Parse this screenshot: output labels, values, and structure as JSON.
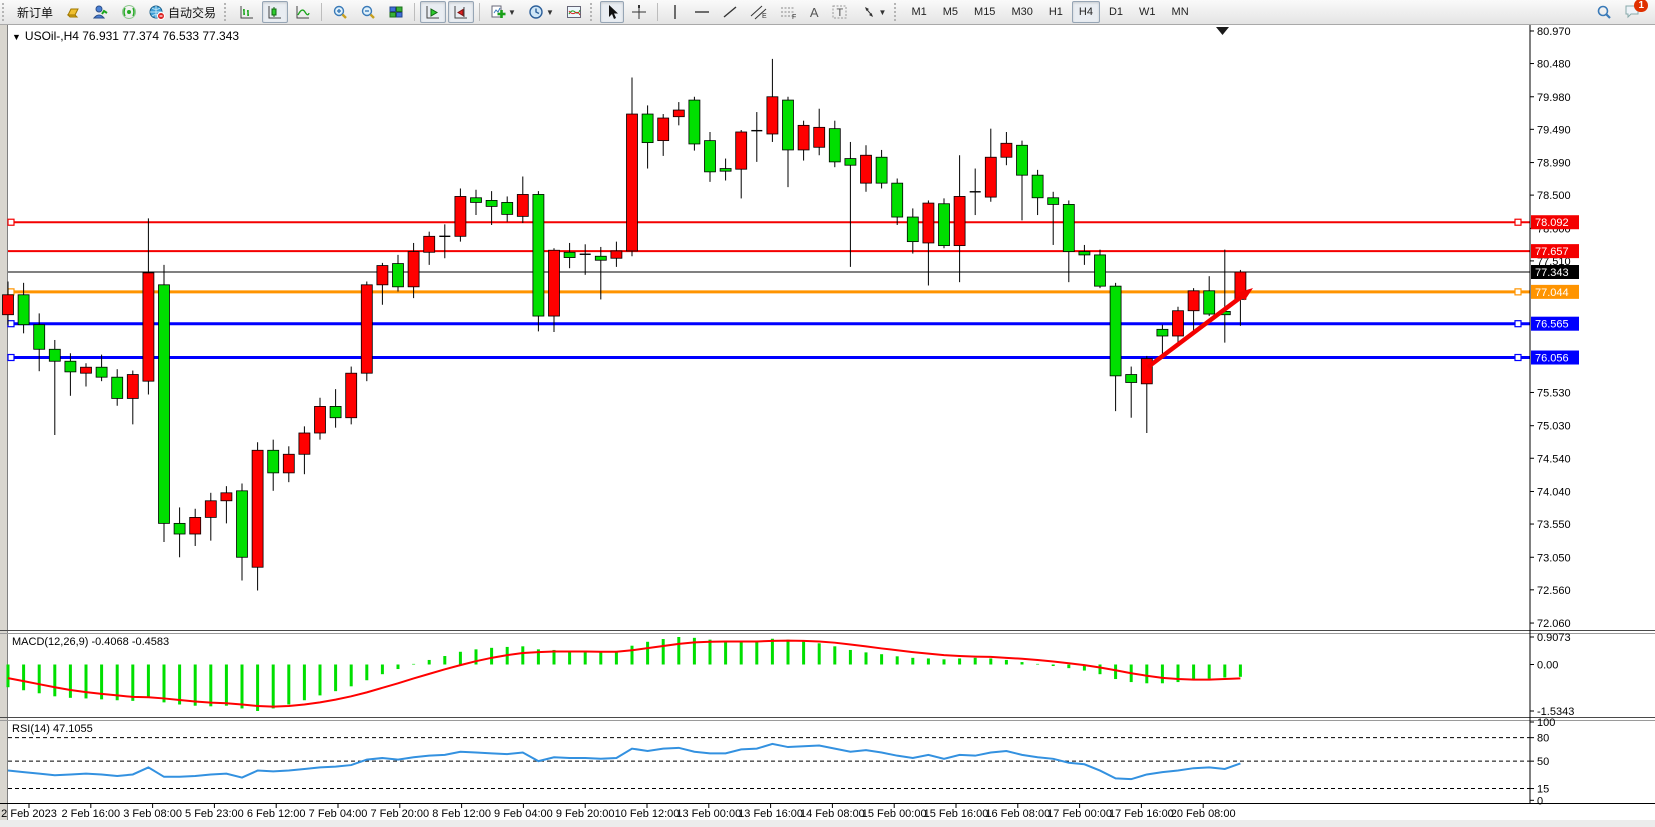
{
  "toolbar": {
    "new_order_label": "新订单",
    "auto_trading_label": "自动交易",
    "timeframes": [
      "M1",
      "M5",
      "M15",
      "M30",
      "H1",
      "H4",
      "D1",
      "W1",
      "MN"
    ],
    "active_timeframe": "H4",
    "notification_count": "1"
  },
  "chart": {
    "title": "USOil-,H4 76.931 77.374 76.533 77.343",
    "symbol": "USOil-",
    "period": "H4",
    "ohlc": {
      "open": "76.931",
      "high": "77.374",
      "low": "76.533",
      "close": "77.343"
    },
    "colors": {
      "up": "#ff0000",
      "down": "#00df00",
      "wick": "#000000",
      "level_red": "#f40000",
      "level_orange": "#ff9400",
      "level_blue": "#0000ff",
      "bid": "#000000",
      "macd_hist": "#00df00",
      "macd_signal": "#ff0000",
      "rsi": "#3391e0",
      "arrow": "#f40000"
    },
    "price_ticks": [
      "80.970",
      "80.480",
      "79.980",
      "79.490",
      "78.990",
      "78.500",
      "78.000",
      "77.510",
      "75.530",
      "75.030",
      "74.540",
      "74.040",
      "73.550",
      "73.050",
      "72.560",
      "72.060"
    ],
    "levels": [
      {
        "label": "78.092",
        "price": 78.092,
        "color": "#f40000",
        "width": 2,
        "handles": true
      },
      {
        "label": "77.657",
        "price": 77.657,
        "color": "#f40000",
        "width": 2,
        "handles": false
      },
      {
        "label": "77.343",
        "price": 77.343,
        "color": "#000000",
        "width": 1,
        "handles": false,
        "type": "bid"
      },
      {
        "label": "77.044",
        "price": 77.044,
        "color": "#ff9400",
        "width": 3,
        "handles": true
      },
      {
        "label": "76.565",
        "price": 76.565,
        "color": "#0000ff",
        "width": 3,
        "handles": true
      },
      {
        "label": "76.056",
        "price": 76.056,
        "color": "#0000ff",
        "width": 3,
        "handles": true
      }
    ],
    "time_labels": [
      "2 Feb 2023",
      "2 Feb 16:00",
      "3 Feb 08:00",
      "5 Feb 23:00",
      "6 Feb 12:00",
      "7 Feb 04:00",
      "7 Feb 20:00",
      "8 Feb 12:00",
      "9 Feb 04:00",
      "9 Feb 20:00",
      "10 Feb 12:00",
      "13 Feb 00:00",
      "13 Feb 16:00",
      "14 Feb 08:00",
      "15 Feb 00:00",
      "15 Feb 16:00",
      "16 Feb 08:00",
      "17 Feb 00:00",
      "17 Feb 16:00",
      "20 Feb 08:00"
    ],
    "candles": [
      [
        76.7,
        77.2,
        76.55,
        77.0
      ],
      [
        77.0,
        77.18,
        76.42,
        76.55
      ],
      [
        76.55,
        76.72,
        75.85,
        76.18
      ],
      [
        76.18,
        76.32,
        74.89,
        76.0
      ],
      [
        76.0,
        76.12,
        75.48,
        75.84
      ],
      [
        75.82,
        75.97,
        75.62,
        75.91
      ],
      [
        75.91,
        76.1,
        75.7,
        75.76
      ],
      [
        75.76,
        75.88,
        75.33,
        75.44
      ],
      [
        75.44,
        75.86,
        75.05,
        75.8
      ],
      [
        75.7,
        78.15,
        75.5,
        77.33
      ],
      [
        77.15,
        77.45,
        73.28,
        73.56
      ],
      [
        73.56,
        73.8,
        73.05,
        73.4
      ],
      [
        73.4,
        73.78,
        73.22,
        73.65
      ],
      [
        73.65,
        74.02,
        73.3,
        73.9
      ],
      [
        73.9,
        74.12,
        73.56,
        74.02
      ],
      [
        74.05,
        74.16,
        72.7,
        73.05
      ],
      [
        72.9,
        74.78,
        72.55,
        74.66
      ],
      [
        74.66,
        74.82,
        74.05,
        74.32
      ],
      [
        74.32,
        74.72,
        74.18,
        74.6
      ],
      [
        74.6,
        75.02,
        74.3,
        74.92
      ],
      [
        74.92,
        75.45,
        74.82,
        75.32
      ],
      [
        75.32,
        75.58,
        75.0,
        75.15
      ],
      [
        75.15,
        75.92,
        75.05,
        75.82
      ],
      [
        75.82,
        77.2,
        75.7,
        77.15
      ],
      [
        77.15,
        77.48,
        76.85,
        77.44
      ],
      [
        77.47,
        77.6,
        77.05,
        77.12
      ],
      [
        77.12,
        77.78,
        76.95,
        77.65
      ],
      [
        77.64,
        77.95,
        77.45,
        77.88
      ],
      [
        77.88,
        78.06,
        77.55,
        77.88
      ],
      [
        77.88,
        78.6,
        77.8,
        78.48
      ],
      [
        78.46,
        78.58,
        78.2,
        78.39
      ],
      [
        78.42,
        78.56,
        78.05,
        78.33
      ],
      [
        78.39,
        78.48,
        78.1,
        78.21
      ],
      [
        78.18,
        78.78,
        78.08,
        78.51
      ],
      [
        78.51,
        78.56,
        76.45,
        76.68
      ],
      [
        76.68,
        77.7,
        76.44,
        77.67
      ],
      [
        77.64,
        77.78,
        77.4,
        77.56
      ],
      [
        77.6,
        77.76,
        77.3,
        77.61
      ],
      [
        77.58,
        77.72,
        76.93,
        77.52
      ],
      [
        77.55,
        77.8,
        77.42,
        77.66
      ],
      [
        77.66,
        80.27,
        77.58,
        79.72
      ],
      [
        79.72,
        79.85,
        78.9,
        79.29
      ],
      [
        79.32,
        79.72,
        79.09,
        79.66
      ],
      [
        79.68,
        79.9,
        79.55,
        79.78
      ],
      [
        79.93,
        79.98,
        79.17,
        79.27
      ],
      [
        79.32,
        79.45,
        78.7,
        78.85
      ],
      [
        78.9,
        79.05,
        78.72,
        78.86
      ],
      [
        78.89,
        79.48,
        78.45,
        79.45
      ],
      [
        79.47,
        79.75,
        79.0,
        79.47
      ],
      [
        79.42,
        80.55,
        79.3,
        79.98
      ],
      [
        79.93,
        79.98,
        78.62,
        79.18
      ],
      [
        79.18,
        79.62,
        79.02,
        79.55
      ],
      [
        79.22,
        79.8,
        79.1,
        79.52
      ],
      [
        79.5,
        79.62,
        78.92,
        79.0
      ],
      [
        79.05,
        79.3,
        77.42,
        78.95
      ],
      [
        78.68,
        79.25,
        78.55,
        79.1
      ],
      [
        79.07,
        79.18,
        78.6,
        78.68
      ],
      [
        78.68,
        78.75,
        78.05,
        78.17
      ],
      [
        78.17,
        78.3,
        77.62,
        77.8
      ],
      [
        77.78,
        78.42,
        77.14,
        78.38
      ],
      [
        78.37,
        78.45,
        77.7,
        77.74
      ],
      [
        77.74,
        79.1,
        77.19,
        78.48
      ],
      [
        78.55,
        78.9,
        78.2,
        78.55
      ],
      [
        78.47,
        79.5,
        78.4,
        79.07
      ],
      [
        79.07,
        79.45,
        78.95,
        79.28
      ],
      [
        79.25,
        79.32,
        78.12,
        78.8
      ],
      [
        78.8,
        78.88,
        78.2,
        78.46
      ],
      [
        78.46,
        78.55,
        77.75,
        78.36
      ],
      [
        78.36,
        78.42,
        77.19,
        77.65
      ],
      [
        77.65,
        77.75,
        77.45,
        77.6
      ],
      [
        77.6,
        77.68,
        77.1,
        77.13
      ],
      [
        77.13,
        77.18,
        75.25,
        75.78
      ],
      [
        75.8,
        75.92,
        75.15,
        75.68
      ],
      [
        75.66,
        76.08,
        74.92,
        76.04
      ],
      [
        76.48,
        76.55,
        76.1,
        76.38
      ],
      [
        76.38,
        76.82,
        76.28,
        76.76
      ],
      [
        76.76,
        77.1,
        76.45,
        77.06
      ],
      [
        77.06,
        77.28,
        76.68,
        76.71
      ],
      [
        76.75,
        77.68,
        76.28,
        76.7
      ],
      [
        76.931,
        77.374,
        76.533,
        77.343
      ]
    ]
  },
  "indicators": {
    "macd": {
      "label": "MACD(12,26,9) -0.4068 -0.4583",
      "name": "MACD(12,26,9)",
      "value": "-0.4068",
      "signal_value": "-0.4583",
      "scale": {
        "max": "0.9073",
        "zero": "0.00",
        "min": "-1.5343"
      },
      "hist": [
        -0.75,
        -0.85,
        -0.95,
        -1.05,
        -1.1,
        -1.12,
        -1.15,
        -1.18,
        -1.2,
        -1.1,
        -1.25,
        -1.32,
        -1.36,
        -1.38,
        -1.36,
        -1.45,
        -1.5343,
        -1.45,
        -1.32,
        -1.18,
        -1.02,
        -0.88,
        -0.72,
        -0.52,
        -0.32,
        -0.15,
        0.02,
        0.15,
        0.28,
        0.42,
        0.5,
        0.55,
        0.58,
        0.6,
        0.5,
        0.48,
        0.45,
        0.42,
        0.4,
        0.4,
        0.62,
        0.75,
        0.84,
        0.9073,
        0.88,
        0.82,
        0.78,
        0.76,
        0.78,
        0.85,
        0.82,
        0.76,
        0.7,
        0.6,
        0.48,
        0.4,
        0.34,
        0.27,
        0.22,
        0.2,
        0.17,
        0.2,
        0.22,
        0.2,
        0.15,
        0.08,
        0.02,
        -0.05,
        -0.12,
        -0.2,
        -0.32,
        -0.48,
        -0.58,
        -0.62,
        -0.62,
        -0.58,
        -0.52,
        -0.47,
        -0.43,
        -0.4068
      ],
      "signal": [
        -0.45,
        -0.55,
        -0.65,
        -0.75,
        -0.84,
        -0.91,
        -0.97,
        -1.02,
        -1.07,
        -1.08,
        -1.12,
        -1.17,
        -1.22,
        -1.26,
        -1.28,
        -1.32,
        -1.37,
        -1.39,
        -1.37,
        -1.32,
        -1.25,
        -1.16,
        -1.05,
        -0.92,
        -0.77,
        -0.62,
        -0.46,
        -0.31,
        -0.16,
        -0.02,
        0.11,
        0.22,
        0.31,
        0.38,
        0.41,
        0.43,
        0.43,
        0.43,
        0.42,
        0.42,
        0.47,
        0.54,
        0.61,
        0.68,
        0.73,
        0.75,
        0.76,
        0.76,
        0.76,
        0.78,
        0.79,
        0.78,
        0.76,
        0.72,
        0.66,
        0.6,
        0.53,
        0.47,
        0.41,
        0.36,
        0.31,
        0.28,
        0.26,
        0.25,
        0.22,
        0.19,
        0.15,
        0.1,
        0.04,
        -0.02,
        -0.1,
        -0.19,
        -0.29,
        -0.37,
        -0.44,
        -0.48,
        -0.5,
        -0.5,
        -0.48,
        -0.4583
      ]
    },
    "rsi": {
      "label": "RSI(14) 47.1055",
      "name": "RSI(14)",
      "value": "47.1055",
      "scale_labels": [
        "100",
        "80",
        "50",
        "15",
        "0"
      ],
      "levels": [
        80,
        50,
        15
      ],
      "values": [
        38,
        36,
        34,
        32,
        33,
        34,
        33,
        31,
        33,
        42,
        30,
        30,
        31,
        33,
        34,
        29,
        38,
        37,
        38,
        40,
        42,
        43,
        45,
        52,
        54,
        52,
        55,
        57,
        58,
        62,
        61,
        60,
        59,
        61,
        50,
        55,
        54,
        54,
        53,
        54,
        66,
        63,
        66,
        67,
        62,
        60,
        60,
        65,
        66,
        72,
        68,
        69,
        70,
        66,
        62,
        64,
        61,
        57,
        54,
        58,
        53,
        58,
        57,
        61,
        63,
        58,
        55,
        53,
        48,
        46,
        38,
        28,
        27,
        33,
        36,
        38,
        41,
        42,
        40,
        47.1
      ]
    }
  }
}
